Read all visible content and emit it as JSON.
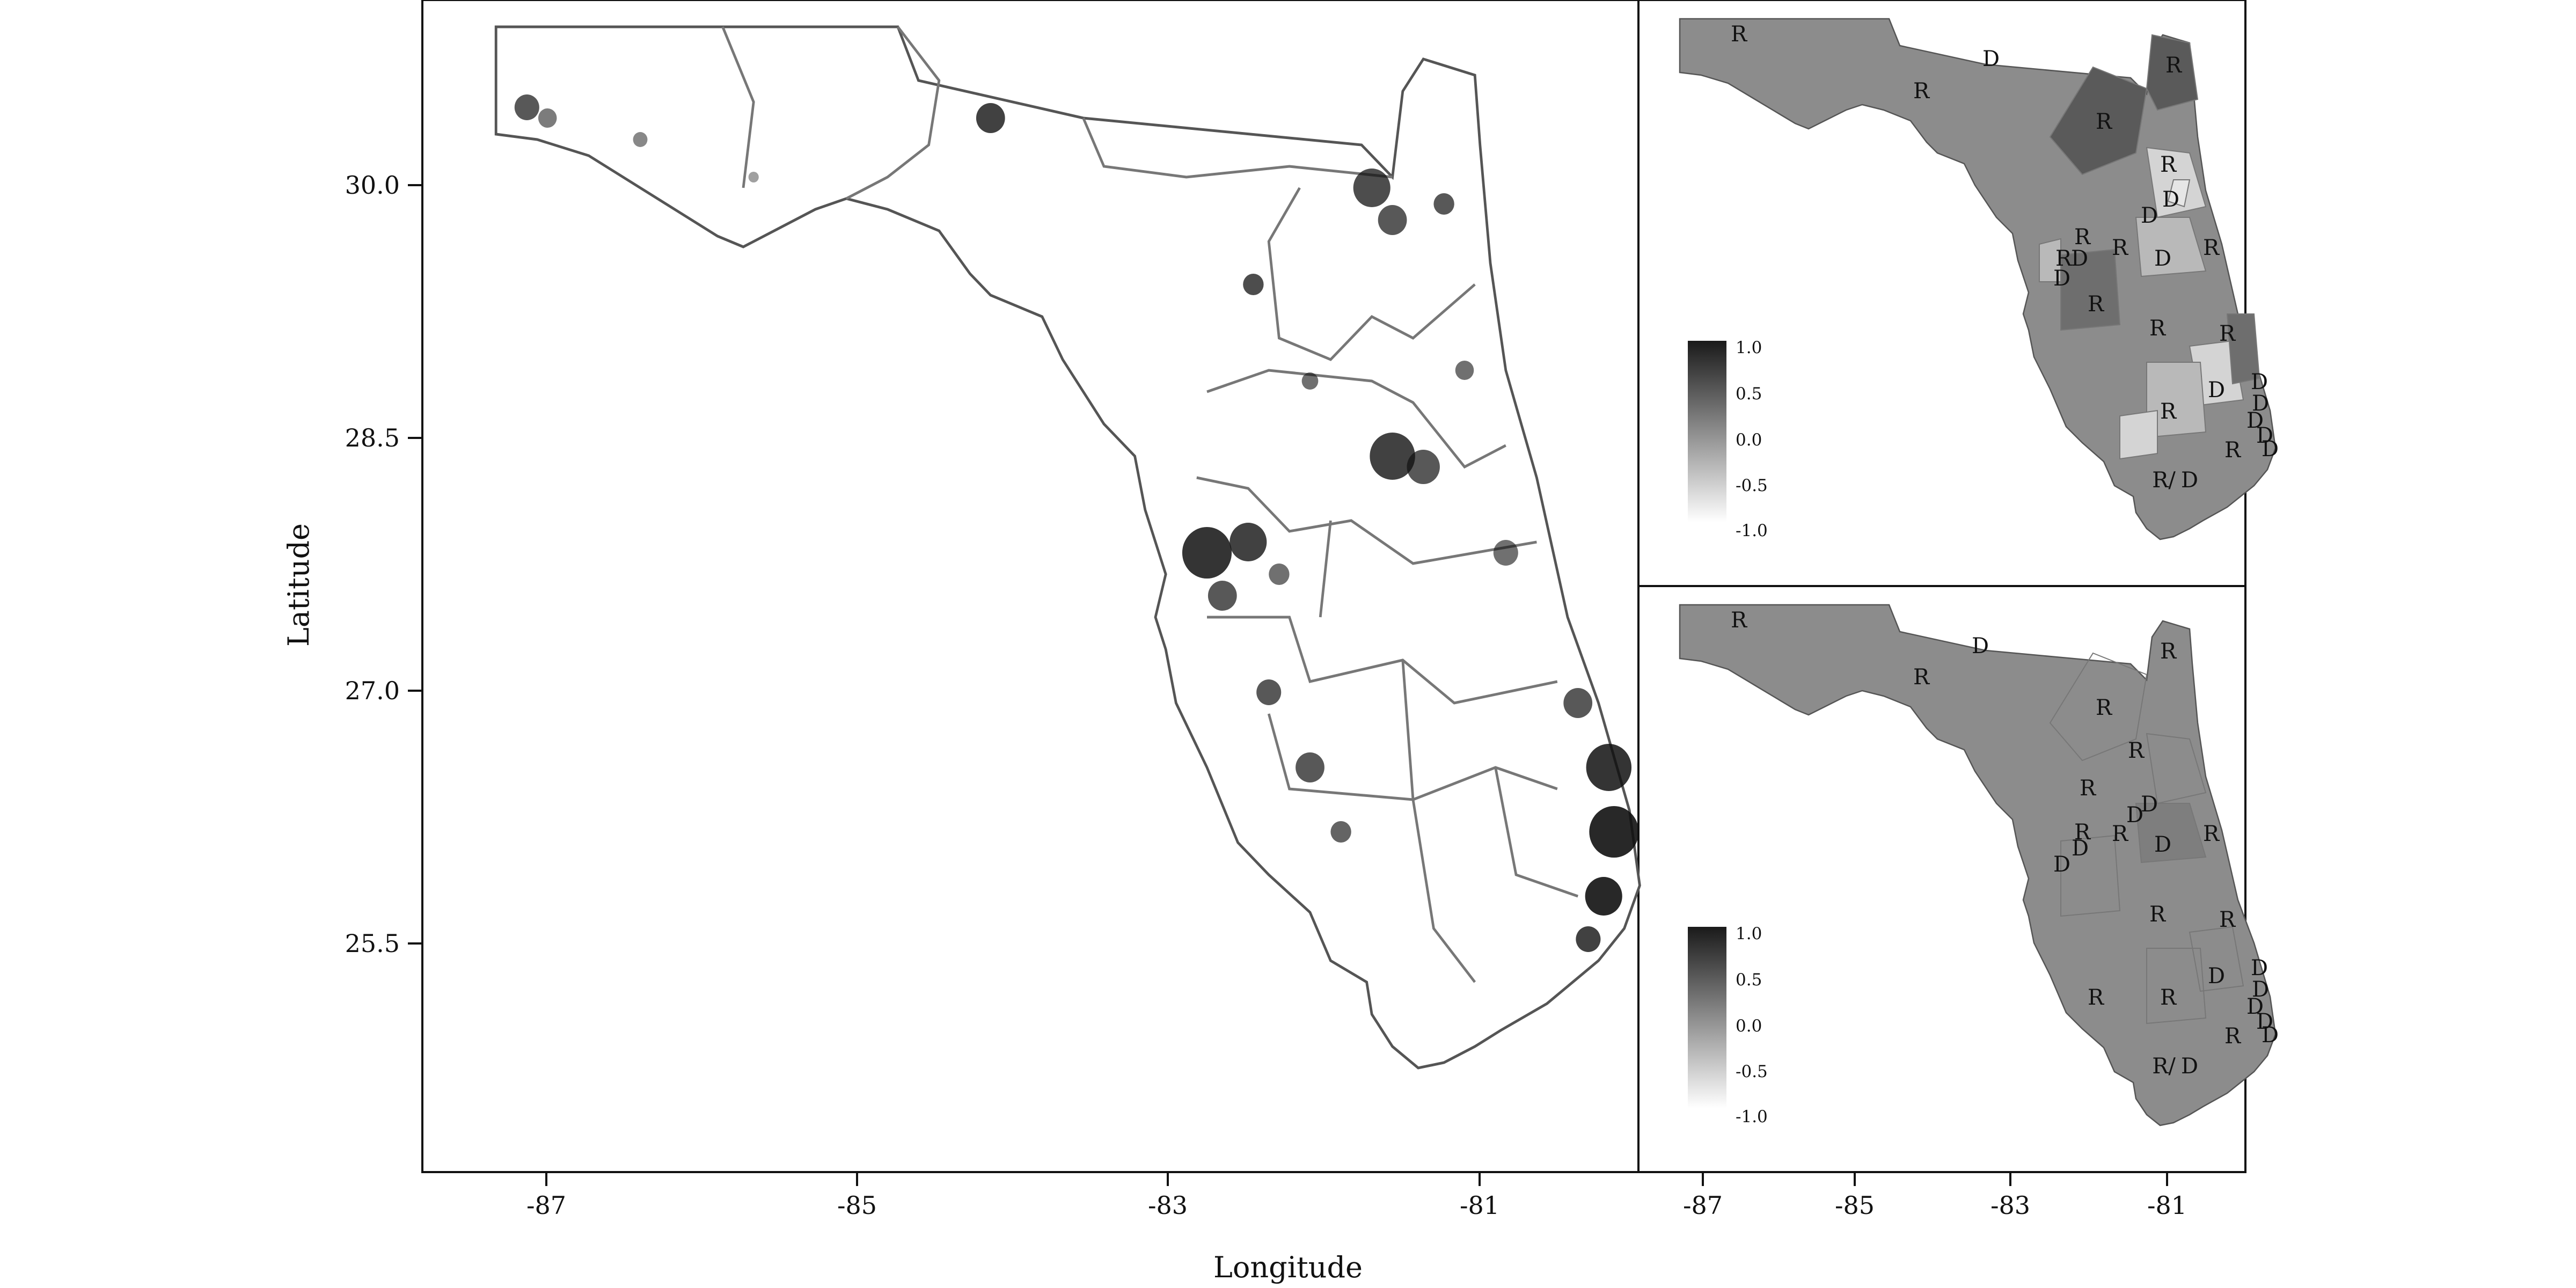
{
  "axes": {
    "xlabel": "Longitude",
    "ylabel": "Latitude",
    "main_x_ticks": [
      "-87",
      "-85",
      "-83",
      "-81"
    ],
    "main_y_ticks": [
      "30.0",
      "28.5",
      "27.0",
      "25.5"
    ],
    "inset_x_ticks": [
      "-87",
      "-85",
      "-83",
      "-81"
    ]
  },
  "scale_legend": {
    "labels": [
      "1.0",
      "0.5",
      "0.0",
      "-0.5",
      "-1.0"
    ]
  },
  "colors": {
    "panel_border": "#111111",
    "district_fill_default": "#8c8c8c",
    "district_fill_dark": "#5a5a5a",
    "district_fill_darker": "#6e6e6e",
    "district_fill_light": "#b9b9b9",
    "district_fill_lighter": "#d4d4d4",
    "district_fill_lightest": "#e6e6e6"
  },
  "top_inset": {
    "labels": [
      {
        "text": "R"
      },
      {
        "text": "D"
      },
      {
        "text": "R"
      },
      {
        "text": "R"
      },
      {
        "text": "R"
      },
      {
        "text": "R"
      },
      {
        "text": "D"
      },
      {
        "text": "D"
      },
      {
        "text": "R"
      },
      {
        "text": "D"
      },
      {
        "text": "R"
      },
      {
        "text": "D"
      },
      {
        "text": "D"
      },
      {
        "text": "R"
      },
      {
        "text": "R"
      },
      {
        "text": "R"
      },
      {
        "text": "R"
      },
      {
        "text": "D"
      },
      {
        "text": "D"
      },
      {
        "text": "R"
      },
      {
        "text": "R"
      },
      {
        "text": "D"
      },
      {
        "text": "D"
      },
      {
        "text": "D"
      },
      {
        "text": "R/"
      },
      {
        "text": "D"
      },
      {
        "text": "R"
      },
      {
        "text": "D"
      }
    ]
  },
  "bottom_inset": {
    "labels": [
      {
        "text": "R"
      },
      {
        "text": "D"
      },
      {
        "text": "R"
      },
      {
        "text": "R"
      },
      {
        "text": "R"
      },
      {
        "text": "R"
      },
      {
        "text": "R"
      },
      {
        "text": "D"
      },
      {
        "text": "D"
      },
      {
        "text": "R"
      },
      {
        "text": "D"
      },
      {
        "text": "D"
      },
      {
        "text": "R"
      },
      {
        "text": "D"
      },
      {
        "text": "R"
      },
      {
        "text": "R"
      },
      {
        "text": "R"
      },
      {
        "text": "D"
      },
      {
        "text": "D"
      },
      {
        "text": "R"
      },
      {
        "text": "R"
      },
      {
        "text": "D"
      },
      {
        "text": "D"
      },
      {
        "text": "D"
      },
      {
        "text": "R/"
      },
      {
        "text": "D"
      },
      {
        "text": "R"
      },
      {
        "text": "D"
      }
    ]
  }
}
